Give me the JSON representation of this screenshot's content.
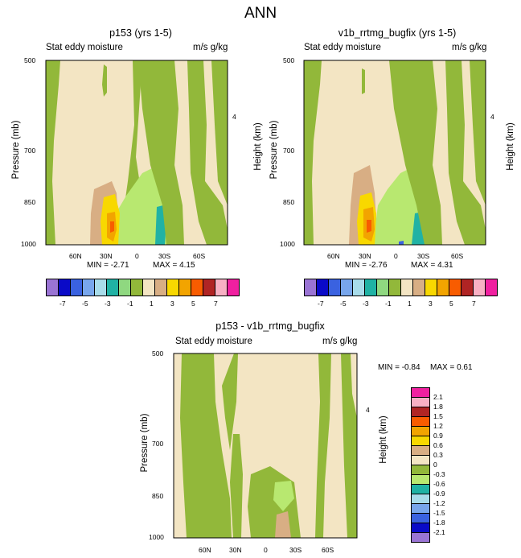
{
  "title": "ANN",
  "chart_data": [
    {
      "type": "contour",
      "title": "p153 (yrs 1-5)",
      "subtitle_left": "Stat eddy moisture",
      "subtitle_right": "m/s g/kg",
      "ylabel": "Pressure (mb)",
      "ylabel_right": "Height (km)",
      "yticks": [
        "500",
        "700",
        "850",
        "1000"
      ],
      "yticks_right": [
        "4"
      ],
      "xticks": [
        "60N",
        "30N",
        "0",
        "30S",
        "60S"
      ],
      "min_label": "MIN = -2.71",
      "max_label": "MAX = 4.15",
      "min": -2.71,
      "max": 4.15
    },
    {
      "type": "contour",
      "title": "v1b_rrtmg_bugfix (yrs 1-5)",
      "subtitle_left": "Stat eddy moisture",
      "subtitle_right": "m/s g/kg",
      "ylabel": "Pressure (mb)",
      "ylabel_right": "Height (km)",
      "yticks": [
        "500",
        "700",
        "850",
        "1000"
      ],
      "yticks_right": [
        "4"
      ],
      "xticks": [
        "60N",
        "30N",
        "0",
        "30S",
        "60S"
      ],
      "min_label": "MIN = -2.76",
      "max_label": "MAX = 4.31",
      "min": -2.76,
      "max": 4.31
    },
    {
      "type": "contour",
      "title": "p153 - v1b_rrtmg_bugfix",
      "subtitle_left": "Stat eddy moisture",
      "subtitle_right": "m/s g/kg",
      "ylabel": "Pressure (mb)",
      "ylabel_right": "Height (km)",
      "yticks": [
        "500",
        "700",
        "850",
        "1000"
      ],
      "yticks_right": [
        "4"
      ],
      "xticks": [
        "60N",
        "30N",
        "0",
        "30S",
        "60S"
      ],
      "min_label": "MIN = -0.84",
      "max_label": "MAX = 0.61",
      "min": -0.84,
      "max": 0.61
    }
  ],
  "colorbar_top": {
    "labels": [
      "-7",
      "-5",
      "-3",
      "-1",
      "1",
      "3",
      "5",
      "7"
    ],
    "colors": [
      "#9a74d4",
      "#0a0ac8",
      "#3a62e0",
      "#78a6ec",
      "#a8dcea",
      "#20b2a4",
      "#8fd880",
      "#92b83a",
      "#f3e5c3",
      "#d8ae84",
      "#f8d800",
      "#f2a400",
      "#f85c00",
      "#b02424",
      "#f8b0c4",
      "#f020a0"
    ]
  },
  "colorbar_diff": {
    "labels": [
      "2.1",
      "1.8",
      "1.5",
      "1.2",
      "0.9",
      "0.6",
      "0.3",
      "0",
      "-0.3",
      "-0.6",
      "-0.9",
      "-1.2",
      "-1.5",
      "-1.8",
      "-2.1"
    ],
    "colors": [
      "#f020a0",
      "#f8b0c4",
      "#b02424",
      "#f85c00",
      "#f2a400",
      "#f8d800",
      "#d8ae84",
      "#f3e5c3",
      "#92b83a",
      "#b8e870",
      "#20b2a4",
      "#a8dcea",
      "#78a6ec",
      "#3a62e0",
      "#0a0ac8",
      "#9a74d4"
    ]
  }
}
